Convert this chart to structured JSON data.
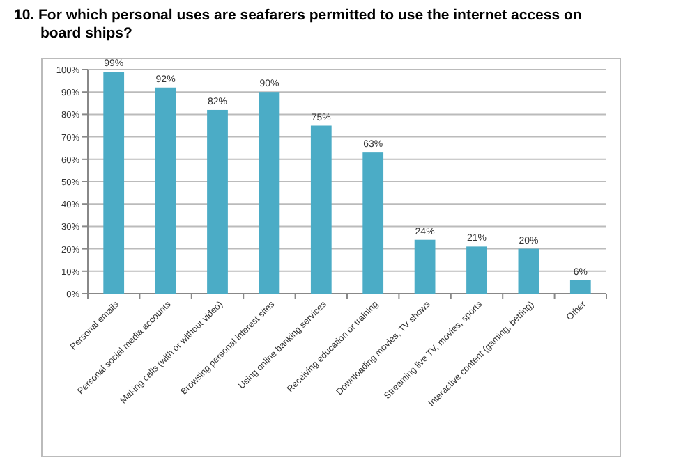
{
  "chart_data": {
    "type": "bar",
    "title": "10. For which personal uses are seafarers permitted to use the internet access on board ships?",
    "categories": [
      "Personal emails",
      "Personal social media accounts",
      "Making calls (with or without video)",
      "Browsing personal interest sites",
      "Using online banking services",
      "Receiving education or training",
      "Downloading movies, TV shows",
      "Streaming live TV, movies, sports",
      "Interactive content (gaming, betting)",
      "Other"
    ],
    "values": [
      99,
      92,
      82,
      90,
      75,
      63,
      24,
      21,
      20,
      6
    ],
    "value_labels": [
      "99%",
      "92%",
      "82%",
      "90%",
      "75%",
      "63%",
      "24%",
      "21%",
      "20%",
      "6%"
    ],
    "color": "#4bacc6",
    "ylim": [
      0,
      100
    ],
    "yticks": [
      {
        "value": 0,
        "label": "0%"
      },
      {
        "value": 10,
        "label": "10%"
      },
      {
        "value": 20,
        "label": "20%"
      },
      {
        "value": 30,
        "label": "30%"
      },
      {
        "value": 40,
        "label": "40%"
      },
      {
        "value": 50,
        "label": "50%"
      },
      {
        "value": 60,
        "label": "60%"
      },
      {
        "value": 70,
        "label": "70%"
      },
      {
        "value": 80,
        "label": "80%"
      },
      {
        "value": 90,
        "label": "90%"
      },
      {
        "value": 100,
        "label": "100%"
      }
    ],
    "grid": "y"
  }
}
